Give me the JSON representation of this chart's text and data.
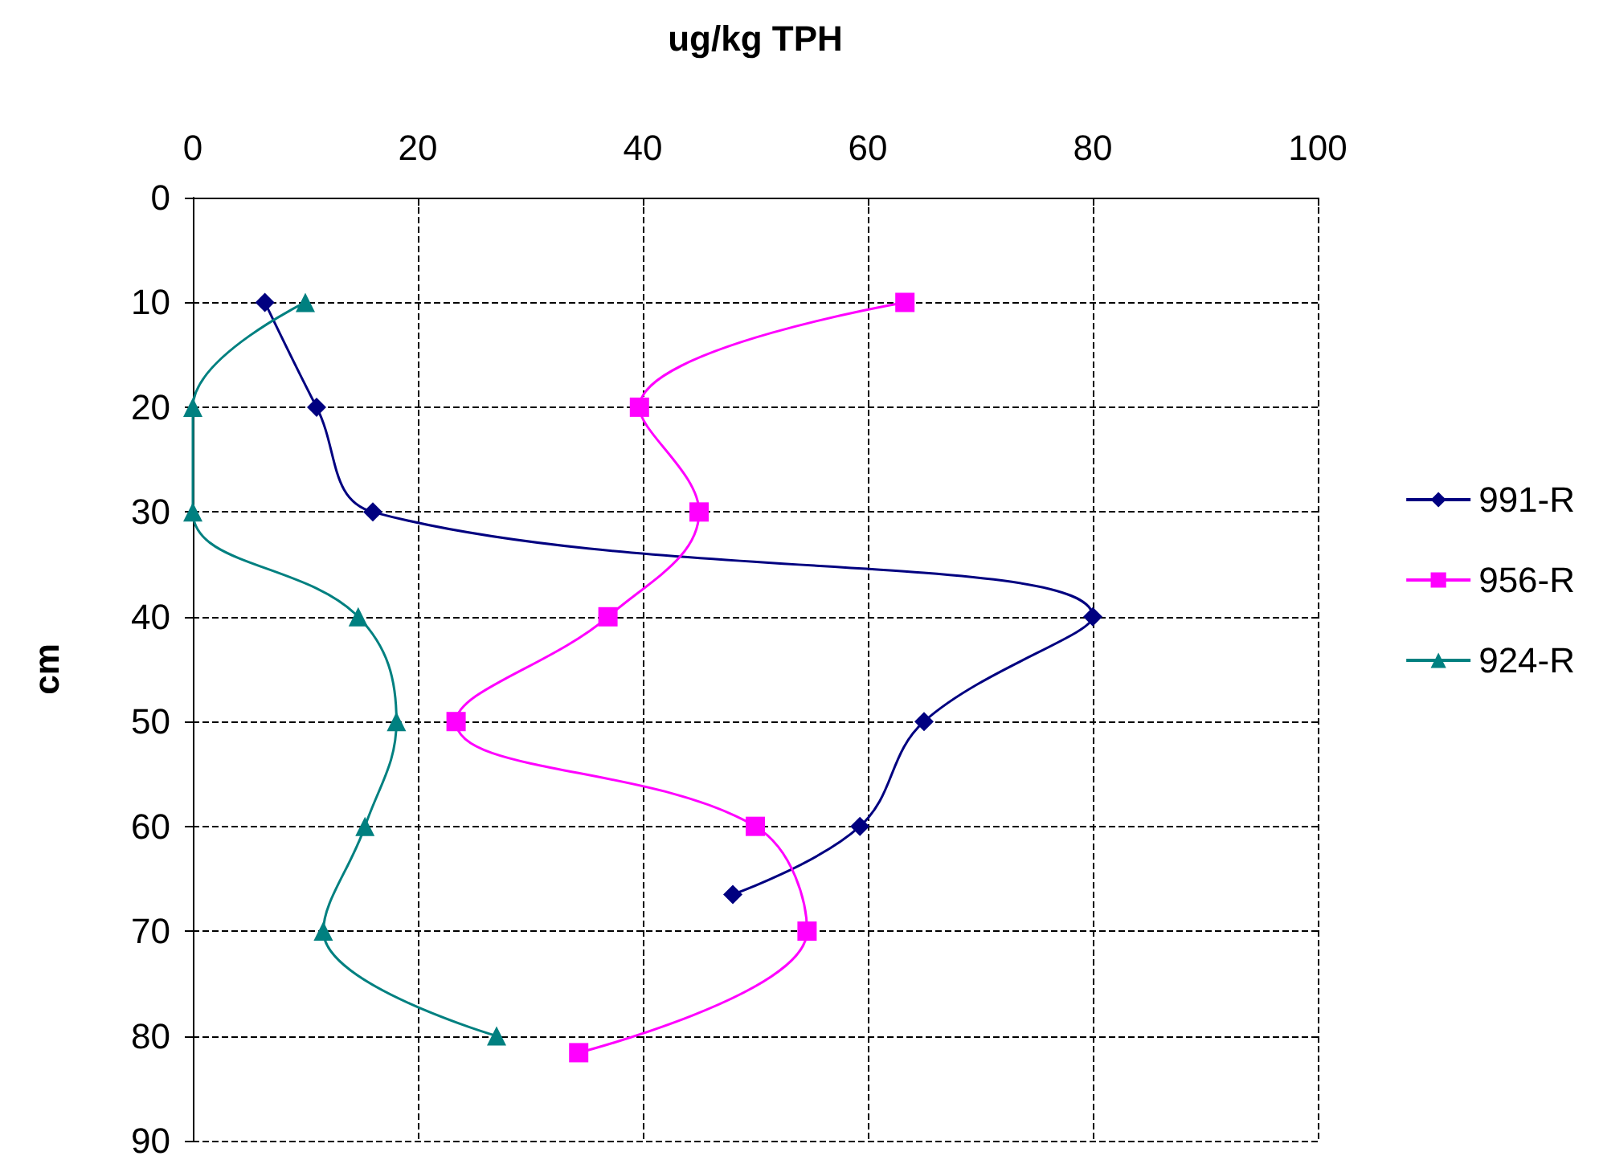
{
  "chart_data": {
    "type": "line",
    "xlabel": "ug/kg TPH",
    "ylabel": "cm",
    "xlim": [
      0,
      100
    ],
    "xticks": [
      0,
      20,
      40,
      60,
      80,
      100
    ],
    "ylim": [
      90,
      0
    ],
    "yticks": [
      0,
      10,
      20,
      30,
      40,
      50,
      60,
      70,
      80,
      90
    ],
    "grid": true,
    "legend": "right",
    "line_style": "solid",
    "series": [
      {
        "name": "991-R",
        "color": "#000080",
        "marker": "diamond",
        "x": [
          6.4,
          11,
          16,
          80,
          65,
          59.3,
          48
        ],
        "values": [
          10,
          20,
          30,
          40,
          50,
          60,
          66.5
        ]
      },
      {
        "name": "956-R",
        "color": "#ff00ff",
        "marker": "square",
        "x": [
          63.3,
          39.7,
          45,
          36.9,
          23.4,
          50,
          54.6,
          34.3
        ],
        "values": [
          10,
          20,
          30,
          40,
          50,
          60,
          70,
          81.6
        ]
      },
      {
        "name": "924-R",
        "color": "#008080",
        "marker": "triangle",
        "x": [
          10,
          0,
          0,
          14.7,
          18.1,
          15.3,
          11.6,
          27
        ],
        "values": [
          10,
          20,
          30,
          40,
          50,
          60,
          70,
          80
        ]
      }
    ]
  }
}
